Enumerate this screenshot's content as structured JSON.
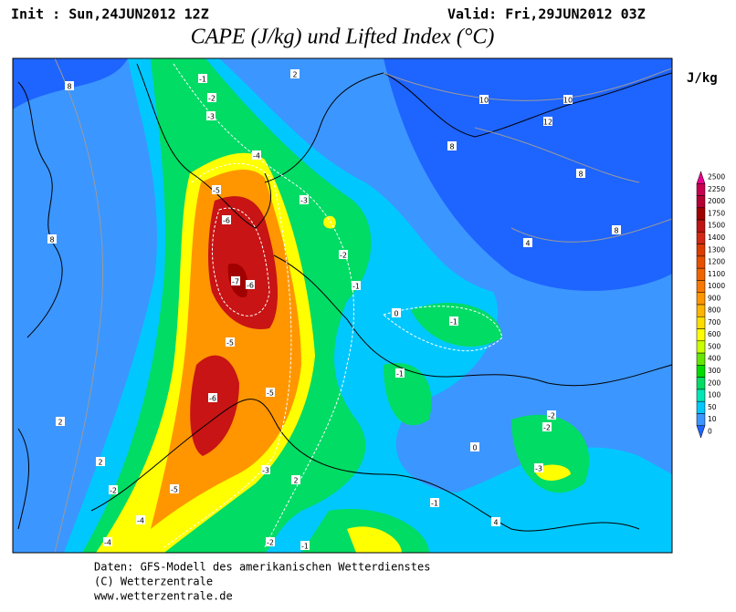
{
  "header": {
    "init": "Init : Sun,24JUN2012 12Z",
    "valid": "Valid: Fri,29JUN2012 03Z",
    "title": "CAPE (J/kg) und Lifted Index (°C)",
    "unit": "J/kg"
  },
  "colorbar": {
    "levels": [
      2500,
      2250,
      2000,
      1750,
      1500,
      1400,
      1300,
      1200,
      1100,
      1000,
      900,
      800,
      700,
      600,
      500,
      400,
      300,
      200,
      100,
      50,
      10,
      0
    ],
    "colors": [
      "#e6008c",
      "#c80050",
      "#b40032",
      "#a00000",
      "#be1414",
      "#d22814",
      "#dc3c00",
      "#e65000",
      "#f06400",
      "#fa7800",
      "#ff9600",
      "#ffb400",
      "#ffdc00",
      "#ffff00",
      "#c8ff00",
      "#64e600",
      "#00dc00",
      "#00dc64",
      "#00e6b4",
      "#00c8ff",
      "#3c96ff",
      "#1e64ff"
    ]
  },
  "map": {
    "contour_labels": [
      "8",
      "-1",
      "-2",
      "-3",
      "2",
      "-4",
      "-5",
      "-6",
      "-7",
      "-6",
      "-5",
      "-6",
      "-5",
      "-3",
      "-2",
      "-1",
      "10",
      "10",
      "12",
      "8",
      "8",
      "8",
      "4",
      "-1",
      "0",
      "-1",
      "8",
      "2",
      "2",
      "-2",
      "-5",
      "-4",
      "-4",
      "-3",
      "-2",
      "-1",
      "2",
      "4",
      "-2",
      "-2",
      "-3",
      "0",
      "-1"
    ]
  },
  "footer": {
    "lines": [
      "Daten: GFS-Modell des amerikanischen Wetterdienstes",
      "(C) Wetterzentrale",
      "www.wetterzentrale.de"
    ]
  }
}
